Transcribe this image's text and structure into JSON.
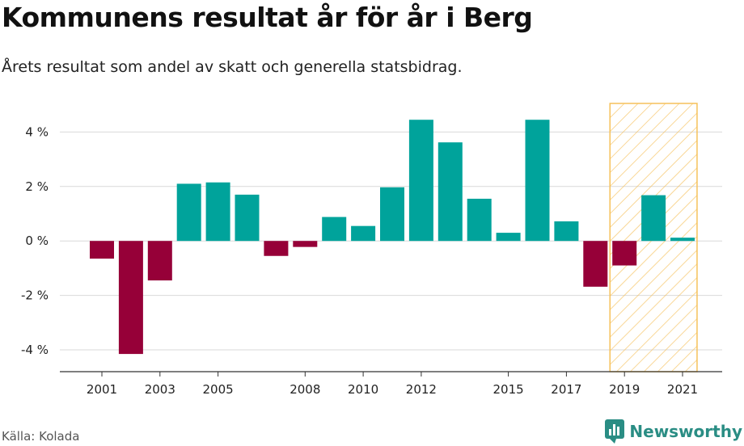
{
  "header": {
    "title": "Kommunens resultat år för år i Berg",
    "subtitle": "Årets resultat som andel av skatt och generella statsbidrag."
  },
  "footer": {
    "source": "Källa: Kolada",
    "brand": "Newsworthy"
  },
  "chart_data": {
    "type": "bar",
    "categories": [
      "2001",
      "2002",
      "2003",
      "2004",
      "2005",
      "2006",
      "2007",
      "2008",
      "2009",
      "2010",
      "2011",
      "2012",
      "2013",
      "2014",
      "2015",
      "2016",
      "2017",
      "2018",
      "2019",
      "2020",
      "2021"
    ],
    "values": [
      -0.65,
      -4.15,
      -1.45,
      2.1,
      2.15,
      1.7,
      -0.55,
      -0.22,
      0.88,
      0.55,
      1.97,
      4.45,
      3.62,
      1.55,
      0.3,
      4.45,
      0.72,
      -1.68,
      -0.9,
      1.68,
      0.12
    ],
    "x_tick_labels": [
      "2001",
      "2003",
      "2005",
      "2008",
      "2010",
      "2012",
      "2015",
      "2017",
      "2019",
      "2021"
    ],
    "y_ticks": [
      4,
      2,
      0,
      -2,
      -4
    ],
    "y_tick_suffix": " %",
    "ylim": [
      -4.8,
      5.05
    ],
    "highlight_range": [
      "2019",
      "2021"
    ],
    "colors": {
      "positive": "#00a39b",
      "negative": "#960038",
      "highlight_stroke": "#f6c15a",
      "grid": "#d9d9d9"
    },
    "grid": true
  }
}
